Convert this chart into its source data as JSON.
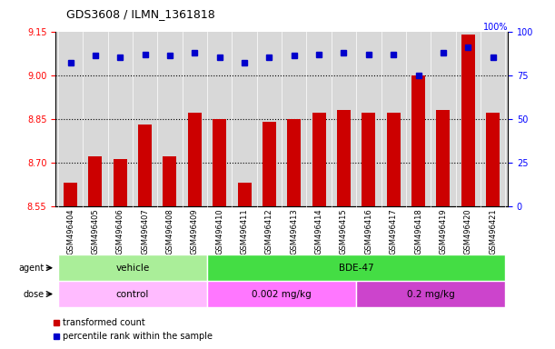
{
  "title": "GDS3608 / ILMN_1361818",
  "samples": [
    "GSM496404",
    "GSM496405",
    "GSM496406",
    "GSM496407",
    "GSM496408",
    "GSM496409",
    "GSM496410",
    "GSM496411",
    "GSM496412",
    "GSM496413",
    "GSM496414",
    "GSM496415",
    "GSM496416",
    "GSM496417",
    "GSM496418",
    "GSM496419",
    "GSM496420",
    "GSM496421"
  ],
  "transformed_counts": [
    8.63,
    8.72,
    8.71,
    8.83,
    8.72,
    8.87,
    8.85,
    8.63,
    8.84,
    8.85,
    8.87,
    8.88,
    8.87,
    8.87,
    9.0,
    8.88,
    9.14,
    8.87
  ],
  "percentile_ranks": [
    82,
    86,
    85,
    87,
    86,
    88,
    85,
    82,
    85,
    86,
    87,
    88,
    87,
    87,
    75,
    88,
    91,
    85
  ],
  "ymin": 8.55,
  "ymax": 9.15,
  "ylim_right": [
    0,
    100
  ],
  "yticks_left": [
    8.55,
    8.7,
    8.85,
    9.0,
    9.15
  ],
  "yticks_right": [
    0,
    25,
    50,
    75,
    100
  ],
  "hlines": [
    8.7,
    8.85,
    9.0
  ],
  "bar_color": "#cc0000",
  "dot_color": "#0000cc",
  "agent_groups": [
    {
      "label": "vehicle",
      "start": 0,
      "end": 6,
      "color": "#aaee99"
    },
    {
      "label": "BDE-47",
      "start": 6,
      "end": 18,
      "color": "#44dd44"
    }
  ],
  "dose_groups": [
    {
      "label": "control",
      "start": 0,
      "end": 6,
      "color": "#ffbbff"
    },
    {
      "label": "0.002 mg/kg",
      "start": 6,
      "end": 12,
      "color": "#ff77ff"
    },
    {
      "label": "0.2 mg/kg",
      "start": 12,
      "end": 18,
      "color": "#cc44cc"
    }
  ],
  "legend_bar_label": "transformed count",
  "legend_dot_label": "percentile rank within the sample",
  "bg_color": "#d8d8d8",
  "agent_label": "agent",
  "dose_label": "dose"
}
